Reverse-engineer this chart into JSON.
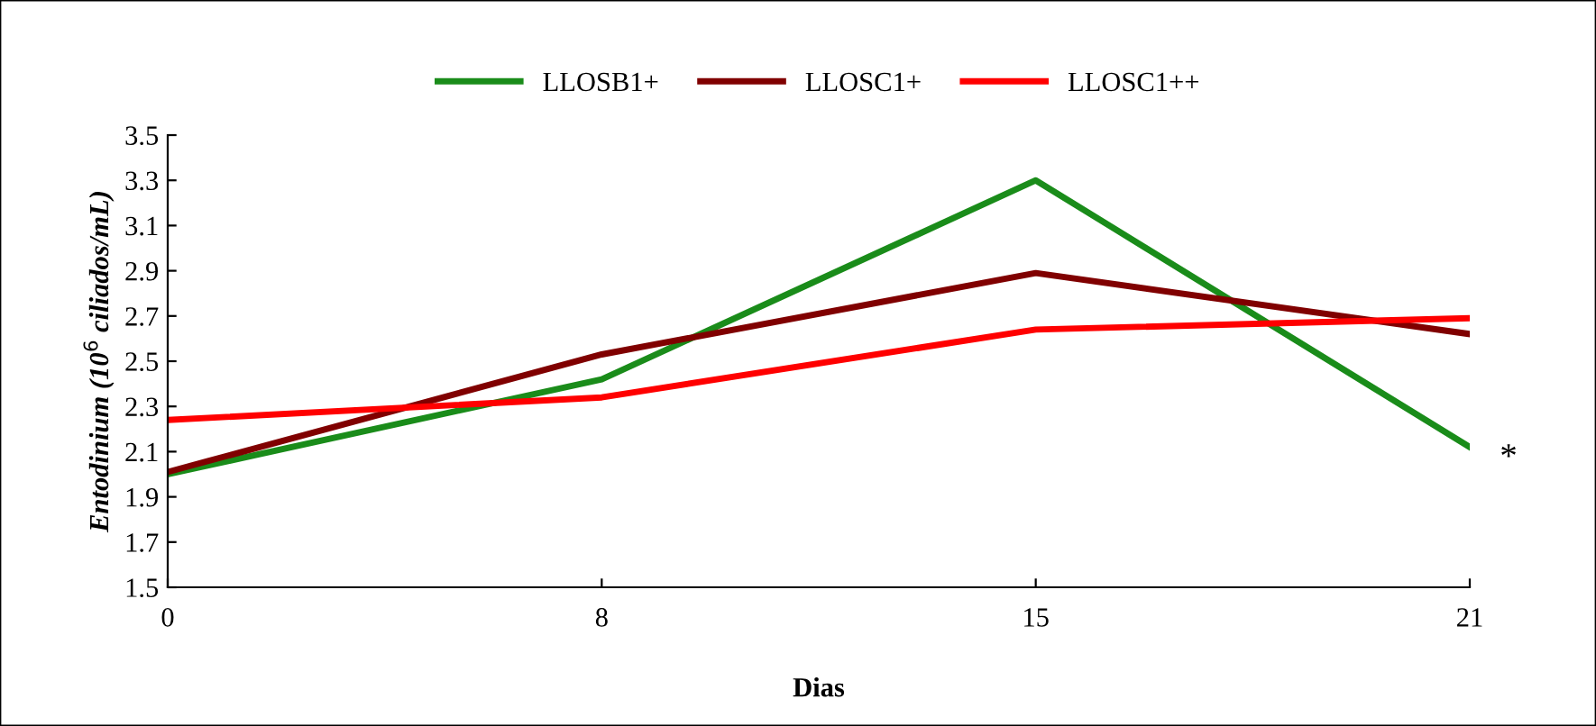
{
  "chart_data": {
    "type": "line",
    "xlabel": "Dias",
    "ylabel": "Entodinium (10$^{6}$ ciliados/mL)",
    "categories": [
      "0",
      "8",
      "15",
      "21"
    ],
    "series": [
      {
        "name": "LLOSB1+",
        "color": "#1a8c1a",
        "values": [
          2.0,
          2.42,
          3.3,
          2.12
        ]
      },
      {
        "name": "LLOSC1+",
        "color": "#800000",
        "values": [
          2.01,
          2.53,
          2.89,
          2.62
        ]
      },
      {
        "name": "LLOSC1++",
        "color": "#ff0000",
        "values": [
          2.24,
          2.34,
          2.64,
          2.69
        ]
      }
    ],
    "ylim": [
      1.5,
      3.5
    ],
    "yticks": [
      1.5,
      1.7,
      1.9,
      2.1,
      2.3,
      2.5,
      2.7,
      2.9,
      3.1,
      3.3,
      3.5
    ],
    "grid": false,
    "legend": "top",
    "marker": "none",
    "line_style": "solid",
    "annotations": [
      {
        "text": "*",
        "x": "21",
        "y": 2.12
      }
    ]
  }
}
